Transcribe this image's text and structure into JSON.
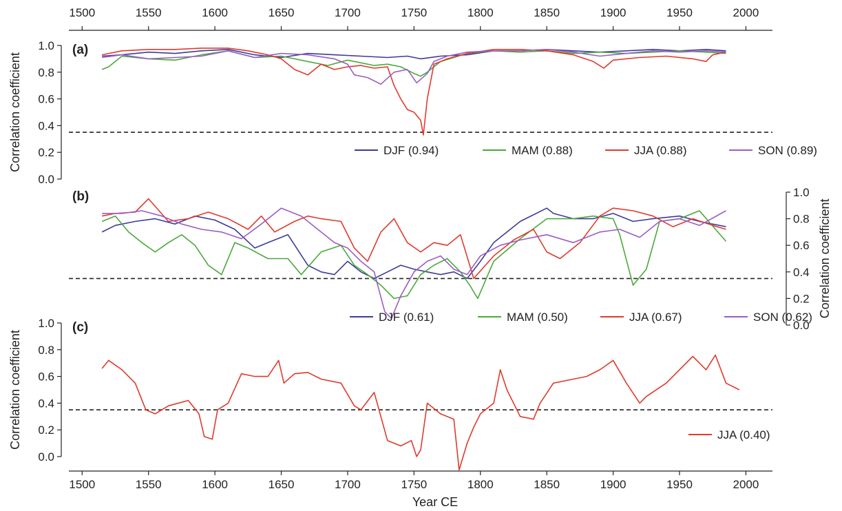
{
  "colors": {
    "DJF": "#3b3b9a",
    "MAM": "#4aa83a",
    "JJA": "#e0392b",
    "SON": "#9b5cc4"
  },
  "chart_data": {
    "type": "line",
    "xlabel": "Year CE",
    "xlim": [
      1490,
      2020
    ],
    "x_ticks": [
      1500,
      1550,
      1600,
      1650,
      1700,
      1750,
      1800,
      1850,
      1900,
      1950,
      2000
    ],
    "x_tick_labels": [
      "1500",
      "1550",
      "1600",
      "1650",
      "1700",
      "1750",
      "1800",
      "1850",
      "1900",
      "1950",
      "2000"
    ],
    "top_axis": true,
    "grid": false,
    "panels": [
      {
        "id": "a",
        "label": "(a)",
        "ylabel": "Correlation coefficient",
        "y_axis_side": "left",
        "ylim": [
          0,
          1
        ],
        "y_ticks": [
          0,
          0.2,
          0.4,
          0.6,
          0.8,
          1.0
        ],
        "y_tick_labels": [
          "0.0",
          "0.2",
          "0.4",
          "0.6",
          "0.8",
          "1.0"
        ],
        "threshold": 0.35,
        "legend_position": "bottom-right",
        "legend": [
          "DJF (0.94)",
          "MAM (0.88)",
          "JJA (0.88)",
          "SON (0.89)"
        ],
        "series": [
          {
            "key": "DJF",
            "name": "DJF (0.94)",
            "x": [
              1515,
              1530,
              1550,
              1570,
              1590,
              1610,
              1630,
              1650,
              1670,
              1690,
              1710,
              1730,
              1745,
              1755,
              1770,
              1790,
              1810,
              1830,
              1850,
              1870,
              1890,
              1910,
              1930,
              1950,
              1970,
              1985
            ],
            "y": [
              0.92,
              0.93,
              0.95,
              0.94,
              0.96,
              0.97,
              0.93,
              0.91,
              0.94,
              0.93,
              0.92,
              0.91,
              0.92,
              0.9,
              0.92,
              0.93,
              0.96,
              0.96,
              0.97,
              0.96,
              0.95,
              0.96,
              0.97,
              0.96,
              0.97,
              0.96
            ]
          },
          {
            "key": "MAM",
            "name": "MAM (0.88)",
            "x": [
              1515,
              1520,
              1530,
              1550,
              1570,
              1590,
              1610,
              1630,
              1650,
              1670,
              1685,
              1700,
              1710,
              1720,
              1730,
              1740,
              1750,
              1755,
              1760,
              1770,
              1790,
              1810,
              1830,
              1850,
              1870,
              1890,
              1910,
              1930,
              1950,
              1970,
              1985
            ],
            "y": [
              0.82,
              0.84,
              0.92,
              0.9,
              0.89,
              0.93,
              0.96,
              0.91,
              0.92,
              0.88,
              0.85,
              0.89,
              0.87,
              0.85,
              0.86,
              0.84,
              0.79,
              0.77,
              0.8,
              0.88,
              0.94,
              0.96,
              0.95,
              0.96,
              0.94,
              0.95,
              0.94,
              0.95,
              0.96,
              0.95,
              0.94
            ]
          },
          {
            "key": "JJA",
            "name": "JJA (0.88)",
            "x": [
              1515,
              1530,
              1550,
              1570,
              1590,
              1610,
              1625,
              1640,
              1650,
              1660,
              1670,
              1680,
              1690,
              1700,
              1710,
              1720,
              1730,
              1735,
              1740,
              1745,
              1750,
              1755,
              1757,
              1760,
              1765,
              1775,
              1790,
              1810,
              1830,
              1850,
              1870,
              1885,
              1893,
              1900,
              1920,
              1940,
              1960,
              1970,
              1975,
              1985
            ],
            "y": [
              0.93,
              0.96,
              0.97,
              0.97,
              0.98,
              0.98,
              0.96,
              0.93,
              0.9,
              0.82,
              0.78,
              0.86,
              0.82,
              0.84,
              0.85,
              0.83,
              0.84,
              0.7,
              0.6,
              0.52,
              0.5,
              0.44,
              0.33,
              0.6,
              0.86,
              0.9,
              0.94,
              0.97,
              0.97,
              0.96,
              0.93,
              0.88,
              0.83,
              0.89,
              0.91,
              0.92,
              0.9,
              0.88,
              0.93,
              0.95
            ]
          },
          {
            "key": "SON",
            "name": "SON (0.89)",
            "x": [
              1515,
              1530,
              1550,
              1570,
              1590,
              1610,
              1630,
              1650,
              1670,
              1690,
              1700,
              1705,
              1715,
              1725,
              1735,
              1745,
              1752,
              1760,
              1765,
              1775,
              1790,
              1810,
              1830,
              1850,
              1870,
              1890,
              1910,
              1930,
              1950,
              1970,
              1985
            ],
            "y": [
              0.91,
              0.93,
              0.9,
              0.91,
              0.92,
              0.96,
              0.91,
              0.94,
              0.93,
              0.9,
              0.86,
              0.78,
              0.76,
              0.71,
              0.8,
              0.82,
              0.72,
              0.79,
              0.88,
              0.92,
              0.95,
              0.96,
              0.96,
              0.97,
              0.95,
              0.92,
              0.94,
              0.96,
              0.95,
              0.96,
              0.95
            ]
          }
        ]
      },
      {
        "id": "b",
        "label": "(b)",
        "ylabel": "Correlation coefficient",
        "y_axis_side": "right",
        "ylim": [
          0,
          1
        ],
        "y_ticks": [
          0,
          0.2,
          0.4,
          0.6,
          0.8,
          1.0
        ],
        "y_tick_labels": [
          "0.0",
          "0.2",
          "0.4",
          "0.6",
          "0.8",
          "1.0"
        ],
        "threshold": 0.35,
        "legend_position": "bottom-right",
        "legend": [
          "DJF (0.61)",
          "MAM (0.50)",
          "JJA (0.67)",
          "SON (0.62)"
        ],
        "series": [
          {
            "key": "DJF",
            "name": "DJF (0.61)",
            "x": [
              1515,
              1525,
              1540,
              1555,
              1570,
              1585,
              1600,
              1615,
              1630,
              1640,
              1655,
              1670,
              1680,
              1690,
              1700,
              1710,
              1720,
              1730,
              1740,
              1750,
              1760,
              1770,
              1780,
              1790,
              1800,
              1810,
              1830,
              1850,
              1855,
              1870,
              1885,
              1900,
              1915,
              1930,
              1950,
              1965,
              1985
            ],
            "y": [
              0.7,
              0.75,
              0.78,
              0.8,
              0.76,
              0.82,
              0.79,
              0.72,
              0.58,
              0.62,
              0.68,
              0.45,
              0.4,
              0.38,
              0.48,
              0.4,
              0.35,
              0.4,
              0.45,
              0.42,
              0.4,
              0.38,
              0.4,
              0.35,
              0.48,
              0.62,
              0.78,
              0.88,
              0.84,
              0.8,
              0.8,
              0.84,
              0.78,
              0.8,
              0.82,
              0.78,
              0.74
            ]
          },
          {
            "key": "MAM",
            "name": "MAM (0.50)",
            "x": [
              1515,
              1525,
              1535,
              1545,
              1555,
              1565,
              1575,
              1585,
              1595,
              1605,
              1615,
              1625,
              1640,
              1655,
              1665,
              1680,
              1695,
              1705,
              1715,
              1725,
              1735,
              1745,
              1755,
              1765,
              1775,
              1785,
              1792,
              1798,
              1810,
              1830,
              1850,
              1870,
              1885,
              1900,
              1905,
              1915,
              1925,
              1935,
              1950,
              1965,
              1985
            ],
            "y": [
              0.78,
              0.82,
              0.7,
              0.62,
              0.55,
              0.62,
              0.68,
              0.6,
              0.45,
              0.38,
              0.62,
              0.58,
              0.5,
              0.5,
              0.38,
              0.55,
              0.6,
              0.45,
              0.38,
              0.3,
              0.2,
              0.22,
              0.38,
              0.45,
              0.5,
              0.4,
              0.3,
              0.2,
              0.48,
              0.65,
              0.8,
              0.8,
              0.82,
              0.8,
              0.68,
              0.3,
              0.42,
              0.78,
              0.8,
              0.86,
              0.63
            ]
          },
          {
            "key": "JJA",
            "name": "JJA (0.67)",
            "x": [
              1515,
              1525,
              1540,
              1550,
              1565,
              1580,
              1595,
              1610,
              1625,
              1635,
              1645,
              1660,
              1670,
              1680,
              1695,
              1705,
              1715,
              1725,
              1735,
              1745,
              1755,
              1765,
              1775,
              1785,
              1795,
              1810,
              1825,
              1840,
              1850,
              1860,
              1875,
              1890,
              1900,
              1915,
              1930,
              1945,
              1960,
              1975,
              1985
            ],
            "y": [
              0.82,
              0.84,
              0.85,
              0.95,
              0.78,
              0.8,
              0.85,
              0.8,
              0.72,
              0.82,
              0.7,
              0.78,
              0.82,
              0.8,
              0.78,
              0.58,
              0.48,
              0.7,
              0.8,
              0.62,
              0.55,
              0.62,
              0.6,
              0.68,
              0.35,
              0.52,
              0.64,
              0.72,
              0.55,
              0.5,
              0.62,
              0.82,
              0.88,
              0.86,
              0.82,
              0.74,
              0.8,
              0.75,
              0.72
            ]
          },
          {
            "key": "SON",
            "name": "SON (0.62)",
            "x": [
              1515,
              1530,
              1545,
              1560,
              1575,
              1590,
              1605,
              1620,
              1635,
              1650,
              1665,
              1680,
              1690,
              1700,
              1710,
              1720,
              1728,
              1733,
              1740,
              1750,
              1760,
              1770,
              1780,
              1790,
              1800,
              1815,
              1830,
              1850,
              1870,
              1890,
              1905,
              1920,
              1935,
              1950,
              1965,
              1985
            ],
            "y": [
              0.84,
              0.84,
              0.86,
              0.82,
              0.76,
              0.72,
              0.7,
              0.65,
              0.76,
              0.88,
              0.82,
              0.7,
              0.62,
              0.58,
              0.48,
              0.4,
              0.1,
              0.05,
              0.22,
              0.4,
              0.48,
              0.52,
              0.42,
              0.38,
              0.52,
              0.6,
              0.64,
              0.68,
              0.62,
              0.7,
              0.72,
              0.66,
              0.78,
              0.8,
              0.75,
              0.86
            ]
          }
        ]
      },
      {
        "id": "c",
        "label": "(c)",
        "ylabel": "Correlation coefficient",
        "y_axis_side": "left",
        "ylim": [
          0,
          1
        ],
        "y_ticks": [
          0,
          0.2,
          0.4,
          0.6,
          0.8,
          1.0
        ],
        "y_tick_labels": [
          "0.0",
          "0.2",
          "0.4",
          "0.6",
          "0.8",
          "1.0"
        ],
        "threshold": 0.35,
        "legend_position": "bottom-right",
        "legend": [
          "JJA (0.40)"
        ],
        "series": [
          {
            "key": "JJA",
            "name": "JJA (0.40)",
            "x": [
              1515,
              1520,
              1530,
              1540,
              1548,
              1555,
              1565,
              1580,
              1588,
              1592,
              1598,
              1602,
              1610,
              1620,
              1630,
              1640,
              1648,
              1652,
              1660,
              1670,
              1680,
              1695,
              1705,
              1710,
              1720,
              1725,
              1730,
              1740,
              1748,
              1752,
              1755,
              1760,
              1770,
              1780,
              1784,
              1790,
              1795,
              1800,
              1810,
              1815,
              1820,
              1830,
              1840,
              1845,
              1855,
              1870,
              1880,
              1890,
              1900,
              1910,
              1920,
              1925,
              1940,
              1960,
              1970,
              1977,
              1985,
              1995
            ],
            "y": [
              0.66,
              0.72,
              0.65,
              0.55,
              0.35,
              0.32,
              0.38,
              0.42,
              0.32,
              0.15,
              0.13,
              0.35,
              0.4,
              0.62,
              0.6,
              0.6,
              0.72,
              0.55,
              0.62,
              0.63,
              0.58,
              0.55,
              0.38,
              0.35,
              0.48,
              0.3,
              0.12,
              0.08,
              0.12,
              0.0,
              0.05,
              0.4,
              0.32,
              0.28,
              -0.1,
              0.1,
              0.22,
              0.32,
              0.4,
              0.65,
              0.5,
              0.3,
              0.28,
              0.4,
              0.55,
              0.58,
              0.6,
              0.65,
              0.72,
              0.55,
              0.4,
              0.45,
              0.55,
              0.75,
              0.65,
              0.76,
              0.55,
              0.5
            ]
          }
        ]
      }
    ]
  }
}
